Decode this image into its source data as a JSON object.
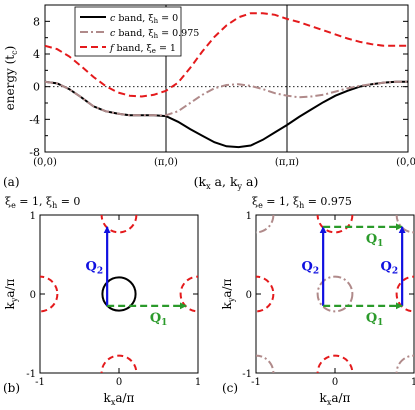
{
  "chart_data": [
    {
      "type": "line",
      "panel_label": "(a)",
      "ylabel": {
        "main": "energy (t",
        "sub": "c",
        "tail": ")"
      },
      "xlabel": {
        "main": "(k",
        "s1": "x",
        "mid": " a, k",
        "s2": "y",
        "tail": " a)"
      },
      "ylim": [
        -8,
        10
      ],
      "y_ticks": [
        -8,
        -4,
        0,
        4,
        8
      ],
      "x_tick_labels": [
        "(0,0)",
        "(π,0)",
        "(π,π)",
        "(0,0)"
      ],
      "grid": false,
      "zero_line": "dotted",
      "legend_position": "top-left",
      "series": [
        {
          "name": "c band, ξh = 0",
          "legend": {
            "a": "c",
            "b": " band, ξ",
            "sub": "h",
            "c": " = 0"
          },
          "color": "#000000",
          "dash": "solid",
          "x": [
            0,
            0.1,
            0.2,
            0.3,
            0.4,
            0.5,
            0.6,
            0.7,
            0.8,
            0.9,
            1.0,
            1.1,
            1.2,
            1.3,
            1.4,
            1.5,
            1.6,
            1.7,
            1.8,
            1.9,
            2.0,
            2.1,
            2.2,
            2.3,
            2.4,
            2.5,
            2.6,
            2.7,
            2.8,
            2.9,
            3.0
          ],
          "values": [
            0.6,
            0.4,
            -0.3,
            -1.3,
            -2.4,
            -3.0,
            -3.3,
            -3.5,
            -3.5,
            -3.5,
            -3.6,
            -4.3,
            -5.2,
            -6.0,
            -6.8,
            -7.3,
            -7.4,
            -7.2,
            -6.5,
            -5.6,
            -4.7,
            -3.7,
            -2.8,
            -1.9,
            -1.1,
            -0.5,
            0.0,
            0.3,
            0.5,
            0.6,
            0.6
          ]
        },
        {
          "name": "c band, ξh = 0.975",
          "legend": {
            "a": "c",
            "b": " band, ξ",
            "sub": "h",
            "c": " = 0.975"
          },
          "color": "#b08a8a",
          "dash": "dashdot",
          "x": [
            0,
            0.1,
            0.2,
            0.3,
            0.4,
            0.5,
            0.6,
            0.7,
            0.8,
            0.9,
            1.0,
            1.1,
            1.2,
            1.3,
            1.4,
            1.5,
            1.6,
            1.7,
            1.8,
            1.9,
            2.0,
            2.1,
            2.2,
            2.3,
            2.4,
            2.5,
            2.6,
            2.7,
            2.8,
            2.9,
            3.0
          ],
          "values": [
            0.6,
            0.4,
            -0.3,
            -1.3,
            -2.4,
            -3.0,
            -3.3,
            -3.5,
            -3.5,
            -3.5,
            -3.5,
            -3.0,
            -2.0,
            -1.0,
            -0.2,
            0.2,
            0.3,
            0.1,
            -0.3,
            -0.8,
            -1.1,
            -1.3,
            -1.2,
            -1.0,
            -0.6,
            -0.2,
            0.1,
            0.3,
            0.5,
            0.6,
            0.6
          ]
        },
        {
          "name": "f band, ξe = 1",
          "legend": {
            "a": "f",
            "b": " band, ξ",
            "sub": "e",
            "c": " = 1"
          },
          "color": "#e41a1c",
          "dash": "dashed",
          "x": [
            0,
            0.1,
            0.2,
            0.3,
            0.4,
            0.5,
            0.6,
            0.7,
            0.8,
            0.9,
            1.0,
            1.1,
            1.2,
            1.3,
            1.4,
            1.5,
            1.6,
            1.7,
            1.8,
            1.9,
            2.0,
            2.1,
            2.2,
            2.3,
            2.4,
            2.5,
            2.6,
            2.7,
            2.8,
            2.9,
            3.0
          ],
          "values": [
            5.0,
            4.6,
            3.7,
            2.5,
            1.2,
            0.1,
            -0.7,
            -1.1,
            -1.2,
            -1.0,
            -0.5,
            0.5,
            2.3,
            4.3,
            6.1,
            7.5,
            8.5,
            9.0,
            9.0,
            8.8,
            8.3,
            7.9,
            7.4,
            6.9,
            6.4,
            5.9,
            5.5,
            5.2,
            5.0,
            5.0,
            5.0
          ]
        }
      ]
    },
    {
      "type": "scatter",
      "panel_label": "(b)",
      "title": {
        "x1": "ξ",
        "s1": "e",
        "x2": " = 1, ξ",
        "s2": "h",
        "x3": " = 0"
      },
      "xlabel": {
        "main": "k",
        "sub": "x",
        "tail": "a/π"
      },
      "ylabel": {
        "main": "k",
        "sub": "y",
        "tail": "a/π"
      },
      "xlim": [
        -1,
        1
      ],
      "ylim": [
        -1,
        1
      ],
      "x_tick_labels": [
        "-1",
        "0",
        "1"
      ],
      "y_tick_labels": [
        "-1",
        "0",
        "1"
      ],
      "hole_pocket": {
        "cx": 0,
        "cy": 0,
        "r": 0.21,
        "color": "#000000"
      },
      "electron_pockets": {
        "r": 0.22,
        "color": "#e41a1c",
        "centers": [
          [
            0,
            1
          ],
          [
            0,
            -1
          ],
          [
            -1,
            0
          ],
          [
            1,
            0
          ]
        ]
      },
      "vectors": [
        {
          "name": "Q",
          "sub": "2",
          "color": "#1010e0",
          "dash": "solid",
          "from": [
            -0.15,
            -0.15
          ],
          "to": [
            -0.15,
            0.85
          ]
        },
        {
          "name": "Q",
          "sub": "1",
          "color": "#2a9a2a",
          "dash": "dashed",
          "from": [
            -0.15,
            -0.15
          ],
          "to": [
            0.85,
            -0.15
          ]
        }
      ]
    },
    {
      "type": "scatter",
      "panel_label": "(c)",
      "title": {
        "x1": "ξ",
        "s1": "e",
        "x2": " = 1, ξ",
        "s2": "h",
        "x3": " = 0.975"
      },
      "xlabel": {
        "main": "k",
        "sub": "x",
        "tail": "a/π"
      },
      "ylabel": {
        "main": "k",
        "sub": "y",
        "tail": "a/π"
      },
      "xlim": [
        -1,
        1
      ],
      "ylim": [
        -1,
        1
      ],
      "x_tick_labels": [
        "-1",
        "0",
        "1"
      ],
      "y_tick_labels": [
        "-1",
        "0",
        "1"
      ],
      "hole_pockets": {
        "r": 0.22,
        "color": "#b08a8a",
        "centers": [
          [
            0,
            0
          ],
          [
            -1,
            -1
          ],
          [
            1,
            -1
          ],
          [
            -1,
            1
          ],
          [
            1,
            1
          ]
        ]
      },
      "electron_pockets": {
        "r": 0.22,
        "color": "#e41a1c",
        "centers": [
          [
            0,
            1
          ],
          [
            0,
            -1
          ],
          [
            -1,
            0
          ],
          [
            1,
            0
          ]
        ]
      },
      "vectors": [
        {
          "name": "Q",
          "sub": "2",
          "color": "#1010e0",
          "dash": "solid",
          "from": [
            -0.15,
            -0.15
          ],
          "to": [
            -0.15,
            0.85
          ]
        },
        {
          "name": "Q",
          "sub": "1",
          "color": "#2a9a2a",
          "dash": "dashed",
          "from": [
            -0.15,
            0.85
          ],
          "to": [
            0.85,
            0.85
          ]
        },
        {
          "name": "Q",
          "sub": "2",
          "color": "#1010e0",
          "dash": "solid",
          "from": [
            0.85,
            -0.15
          ],
          "to": [
            0.85,
            0.85
          ]
        },
        {
          "name": "Q",
          "sub": "1",
          "color": "#2a9a2a",
          "dash": "dashed",
          "from": [
            -0.15,
            -0.15
          ],
          "to": [
            0.85,
            -0.15
          ]
        }
      ]
    }
  ]
}
